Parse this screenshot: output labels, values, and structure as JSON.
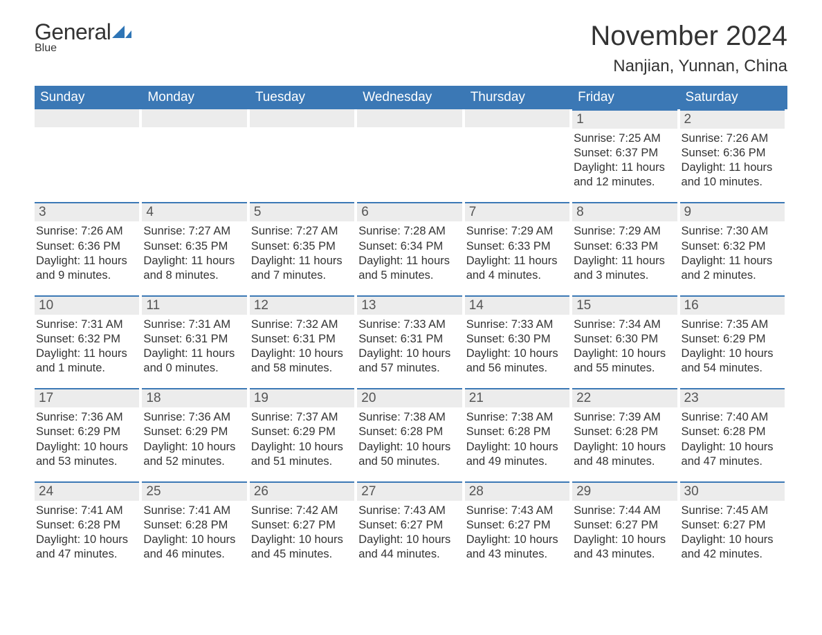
{
  "logo": {
    "word1": "General",
    "word2": "Blue"
  },
  "title": "November 2024",
  "subtitle": "Nanjian, Yunnan, China",
  "colors": {
    "header_bg": "#3b78b5",
    "header_text": "#ffffff",
    "daybar_bg": "#ececec",
    "daybar_border": "#3b78b5",
    "text": "#333333",
    "logo_blue": "#2e75b6"
  },
  "day_headers": [
    "Sunday",
    "Monday",
    "Tuesday",
    "Wednesday",
    "Thursday",
    "Friday",
    "Saturday"
  ],
  "weeks": [
    [
      {
        "day": "",
        "sunrise": "",
        "sunset": "",
        "daylight1": "",
        "daylight2": ""
      },
      {
        "day": "",
        "sunrise": "",
        "sunset": "",
        "daylight1": "",
        "daylight2": ""
      },
      {
        "day": "",
        "sunrise": "",
        "sunset": "",
        "daylight1": "",
        "daylight2": ""
      },
      {
        "day": "",
        "sunrise": "",
        "sunset": "",
        "daylight1": "",
        "daylight2": ""
      },
      {
        "day": "",
        "sunrise": "",
        "sunset": "",
        "daylight1": "",
        "daylight2": ""
      },
      {
        "day": "1",
        "sunrise": "Sunrise: 7:25 AM",
        "sunset": "Sunset: 6:37 PM",
        "daylight1": "Daylight: 11 hours",
        "daylight2": "and 12 minutes."
      },
      {
        "day": "2",
        "sunrise": "Sunrise: 7:26 AM",
        "sunset": "Sunset: 6:36 PM",
        "daylight1": "Daylight: 11 hours",
        "daylight2": "and 10 minutes."
      }
    ],
    [
      {
        "day": "3",
        "sunrise": "Sunrise: 7:26 AM",
        "sunset": "Sunset: 6:36 PM",
        "daylight1": "Daylight: 11 hours",
        "daylight2": "and 9 minutes."
      },
      {
        "day": "4",
        "sunrise": "Sunrise: 7:27 AM",
        "sunset": "Sunset: 6:35 PM",
        "daylight1": "Daylight: 11 hours",
        "daylight2": "and 8 minutes."
      },
      {
        "day": "5",
        "sunrise": "Sunrise: 7:27 AM",
        "sunset": "Sunset: 6:35 PM",
        "daylight1": "Daylight: 11 hours",
        "daylight2": "and 7 minutes."
      },
      {
        "day": "6",
        "sunrise": "Sunrise: 7:28 AM",
        "sunset": "Sunset: 6:34 PM",
        "daylight1": "Daylight: 11 hours",
        "daylight2": "and 5 minutes."
      },
      {
        "day": "7",
        "sunrise": "Sunrise: 7:29 AM",
        "sunset": "Sunset: 6:33 PM",
        "daylight1": "Daylight: 11 hours",
        "daylight2": "and 4 minutes."
      },
      {
        "day": "8",
        "sunrise": "Sunrise: 7:29 AM",
        "sunset": "Sunset: 6:33 PM",
        "daylight1": "Daylight: 11 hours",
        "daylight2": "and 3 minutes."
      },
      {
        "day": "9",
        "sunrise": "Sunrise: 7:30 AM",
        "sunset": "Sunset: 6:32 PM",
        "daylight1": "Daylight: 11 hours",
        "daylight2": "and 2 minutes."
      }
    ],
    [
      {
        "day": "10",
        "sunrise": "Sunrise: 7:31 AM",
        "sunset": "Sunset: 6:32 PM",
        "daylight1": "Daylight: 11 hours",
        "daylight2": "and 1 minute."
      },
      {
        "day": "11",
        "sunrise": "Sunrise: 7:31 AM",
        "sunset": "Sunset: 6:31 PM",
        "daylight1": "Daylight: 11 hours",
        "daylight2": "and 0 minutes."
      },
      {
        "day": "12",
        "sunrise": "Sunrise: 7:32 AM",
        "sunset": "Sunset: 6:31 PM",
        "daylight1": "Daylight: 10 hours",
        "daylight2": "and 58 minutes."
      },
      {
        "day": "13",
        "sunrise": "Sunrise: 7:33 AM",
        "sunset": "Sunset: 6:31 PM",
        "daylight1": "Daylight: 10 hours",
        "daylight2": "and 57 minutes."
      },
      {
        "day": "14",
        "sunrise": "Sunrise: 7:33 AM",
        "sunset": "Sunset: 6:30 PM",
        "daylight1": "Daylight: 10 hours",
        "daylight2": "and 56 minutes."
      },
      {
        "day": "15",
        "sunrise": "Sunrise: 7:34 AM",
        "sunset": "Sunset: 6:30 PM",
        "daylight1": "Daylight: 10 hours",
        "daylight2": "and 55 minutes."
      },
      {
        "day": "16",
        "sunrise": "Sunrise: 7:35 AM",
        "sunset": "Sunset: 6:29 PM",
        "daylight1": "Daylight: 10 hours",
        "daylight2": "and 54 minutes."
      }
    ],
    [
      {
        "day": "17",
        "sunrise": "Sunrise: 7:36 AM",
        "sunset": "Sunset: 6:29 PM",
        "daylight1": "Daylight: 10 hours",
        "daylight2": "and 53 minutes."
      },
      {
        "day": "18",
        "sunrise": "Sunrise: 7:36 AM",
        "sunset": "Sunset: 6:29 PM",
        "daylight1": "Daylight: 10 hours",
        "daylight2": "and 52 minutes."
      },
      {
        "day": "19",
        "sunrise": "Sunrise: 7:37 AM",
        "sunset": "Sunset: 6:29 PM",
        "daylight1": "Daylight: 10 hours",
        "daylight2": "and 51 minutes."
      },
      {
        "day": "20",
        "sunrise": "Sunrise: 7:38 AM",
        "sunset": "Sunset: 6:28 PM",
        "daylight1": "Daylight: 10 hours",
        "daylight2": "and 50 minutes."
      },
      {
        "day": "21",
        "sunrise": "Sunrise: 7:38 AM",
        "sunset": "Sunset: 6:28 PM",
        "daylight1": "Daylight: 10 hours",
        "daylight2": "and 49 minutes."
      },
      {
        "day": "22",
        "sunrise": "Sunrise: 7:39 AM",
        "sunset": "Sunset: 6:28 PM",
        "daylight1": "Daylight: 10 hours",
        "daylight2": "and 48 minutes."
      },
      {
        "day": "23",
        "sunrise": "Sunrise: 7:40 AM",
        "sunset": "Sunset: 6:28 PM",
        "daylight1": "Daylight: 10 hours",
        "daylight2": "and 47 minutes."
      }
    ],
    [
      {
        "day": "24",
        "sunrise": "Sunrise: 7:41 AM",
        "sunset": "Sunset: 6:28 PM",
        "daylight1": "Daylight: 10 hours",
        "daylight2": "and 47 minutes."
      },
      {
        "day": "25",
        "sunrise": "Sunrise: 7:41 AM",
        "sunset": "Sunset: 6:28 PM",
        "daylight1": "Daylight: 10 hours",
        "daylight2": "and 46 minutes."
      },
      {
        "day": "26",
        "sunrise": "Sunrise: 7:42 AM",
        "sunset": "Sunset: 6:27 PM",
        "daylight1": "Daylight: 10 hours",
        "daylight2": "and 45 minutes."
      },
      {
        "day": "27",
        "sunrise": "Sunrise: 7:43 AM",
        "sunset": "Sunset: 6:27 PM",
        "daylight1": "Daylight: 10 hours",
        "daylight2": "and 44 minutes."
      },
      {
        "day": "28",
        "sunrise": "Sunrise: 7:43 AM",
        "sunset": "Sunset: 6:27 PM",
        "daylight1": "Daylight: 10 hours",
        "daylight2": "and 43 minutes."
      },
      {
        "day": "29",
        "sunrise": "Sunrise: 7:44 AM",
        "sunset": "Sunset: 6:27 PM",
        "daylight1": "Daylight: 10 hours",
        "daylight2": "and 43 minutes."
      },
      {
        "day": "30",
        "sunrise": "Sunrise: 7:45 AM",
        "sunset": "Sunset: 6:27 PM",
        "daylight1": "Daylight: 10 hours",
        "daylight2": "and 42 minutes."
      }
    ]
  ]
}
